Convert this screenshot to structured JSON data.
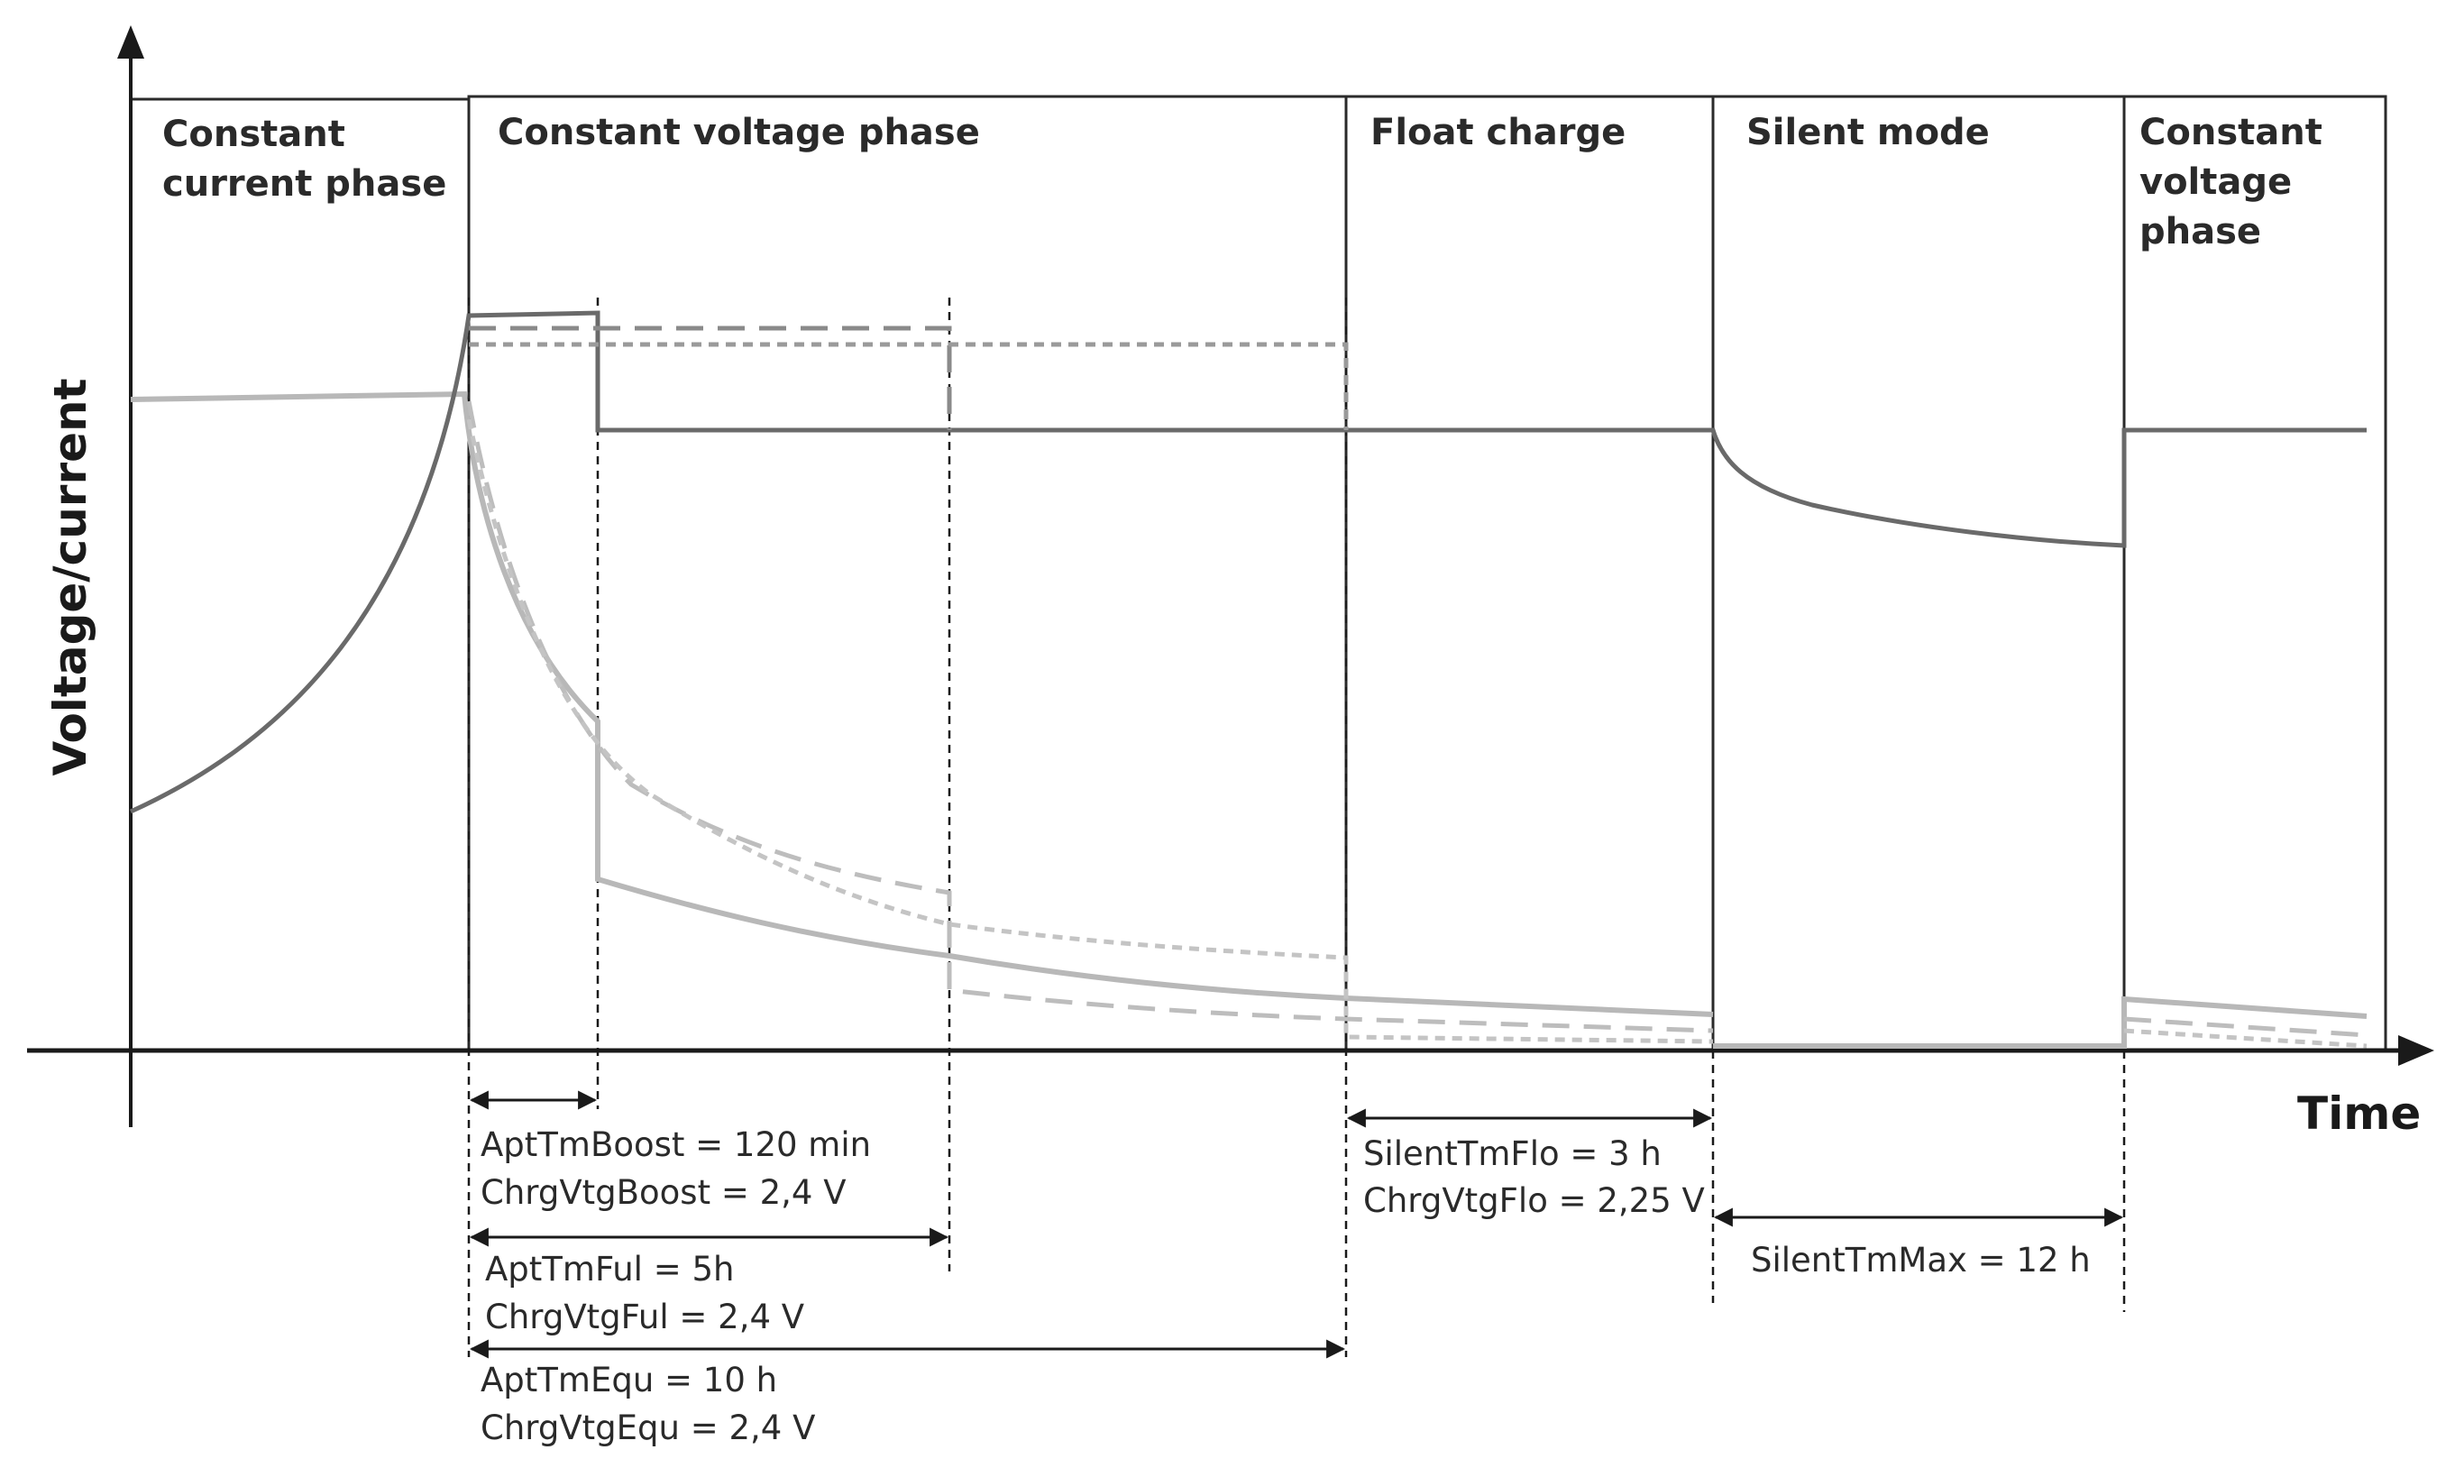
{
  "axes": {
    "y_label": "Voltage/current",
    "x_label": "Time"
  },
  "phases": [
    {
      "lines": [
        "Constant",
        "current phase"
      ]
    },
    {
      "lines": [
        "Constant voltage phase"
      ]
    },
    {
      "lines": [
        "Float charge"
      ]
    },
    {
      "lines": [
        "Silent mode"
      ]
    },
    {
      "lines": [
        "Constant",
        "voltage",
        "phase"
      ]
    }
  ],
  "annotations": {
    "boost": [
      "AptTmBoost = 120 min",
      "ChrgVtgBoost = 2,4 V"
    ],
    "full": [
      "AptTmFul = 5h",
      "ChrgVtgFul = 2,4 V"
    ],
    "equ": [
      "AptTmEqu = 10 h",
      "ChrgVtgEqu = 2,4 V"
    ],
    "float": [
      "SilentTmFlo = 3 h",
      "ChrgVtgFlo = 2,25 V"
    ],
    "silent": [
      "SilentTmMax = 12 h"
    ]
  },
  "colors": {
    "voltage_curve": "#6a6a6a",
    "current_curve": "#b8b8b8",
    "frame": "#2a2a2a"
  }
}
